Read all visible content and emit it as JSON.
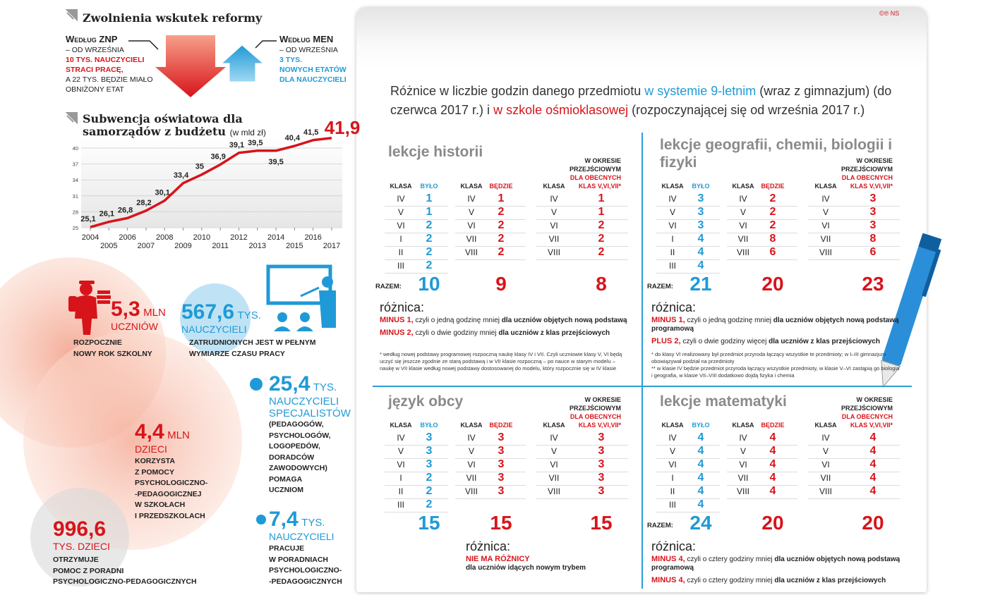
{
  "header": {
    "title": "Zwolnienia wskutek reformy"
  },
  "layoffs": {
    "znp": {
      "source": "Według ZNP",
      "lines": [
        "– OD WRZEŚNIA"
      ],
      "highlight": [
        "10 TYS. NAUCZYCIELI",
        "STRACI PRACĘ,"
      ],
      "text": [
        "A 22 TYS. BĘDZIE MIAŁO",
        "OBNIŻONY ETAT"
      ]
    },
    "men": {
      "source": "Według MEN",
      "lines": [
        "– OD WRZEŚNIA"
      ],
      "highlight": [
        "3 TYS.",
        "NOWYCH ETATÓW",
        "DLA NAUCZYCIELI"
      ]
    }
  },
  "chart_data": {
    "type": "line",
    "title": "Subwencja oświatowa dla samorządów z budżetu",
    "subtitle": "(w mld zł)",
    "x": [
      2004,
      2005,
      2006,
      2007,
      2008,
      2009,
      2010,
      2011,
      2012,
      2013,
      2014,
      2015,
      2016,
      2017
    ],
    "values": [
      25.1,
      26.1,
      26.8,
      28.2,
      30.1,
      33.4,
      35,
      36.9,
      39.1,
      39.5,
      39.5,
      40.4,
      41.5,
      41.9
    ],
    "value_labels": [
      "25,1",
      "26,1",
      "26,8",
      "28,2",
      "30,1",
      "33,4",
      "35",
      "36,9",
      "39,1",
      "39,5",
      "39,5",
      "40,4",
      "41,5",
      "41,9"
    ],
    "xlim": [
      2004,
      2017
    ],
    "ylim": [
      25,
      42
    ],
    "xticks": [
      2004,
      2005,
      2006,
      2007,
      2008,
      2009,
      2010,
      2011,
      2012,
      2013,
      2014,
      2015,
      2016,
      2017
    ],
    "yticks": [
      25,
      28,
      31,
      34,
      37,
      40
    ],
    "color": "#d7141a",
    "grid": true
  },
  "stats": [
    {
      "value": "5,3",
      "unit": "MLN",
      "noun": "UCZNIÓW",
      "text": [
        "ROZPOCZNIE",
        "NOWY ROK SZKOLNY"
      ]
    },
    {
      "value": "567,6",
      "unit": "TYS.",
      "noun": "NAUCZYCIELI",
      "text": [
        "ZATRUDNIONYCH JEST W PEŁNYM",
        "WYMIARZE CZASU PRACY"
      ]
    },
    {
      "value": "25,4",
      "unit": "TYS.",
      "noun": "NAUCZYCIELI SPECJALISTÓW",
      "text": [
        "(PEDAGOGÓW,",
        "PSYCHOLOGÓW,",
        "LOGOPEDÓW,",
        "DORADCÓW",
        "ZAWODOWYCH)",
        "POMAGA",
        "UCZNIOM"
      ]
    },
    {
      "value": "4,4",
      "unit": "MLN",
      "noun": "DZIECI",
      "text": [
        "KORZYSTA",
        "Z POMOCY",
        "PSYCHOLOGICZNO-",
        "-PEDAGOGICZNEJ",
        "W SZKOŁACH",
        "I PRZEDSZKOLACH"
      ]
    },
    {
      "value": "996,6",
      "noun": "TYS. DZIECI",
      "text": [
        "OTRZYMUJE",
        "POMOC Z PORADNI",
        "PSYCHOLOGICZNO-PEDAGOGICZNYCH"
      ]
    },
    {
      "value": "7,4",
      "unit": "TYS.",
      "noun": "NAUCZYCIELI",
      "text": [
        "PRACUJE",
        "W PORADNIACH",
        "PSYCHOLOGICZNO-",
        "-PEDAGOGICZNYCH"
      ]
    }
  ],
  "copyright": "©℗ NS",
  "headline": [
    {
      "text": "Różnice w liczbie godzin danego przedmiotu "
    },
    {
      "text": "w systemie 9-letnim",
      "color": "#1f9ad6"
    },
    {
      "text": " (wraz z gimnazjum) (do czerwca 2017 r.) i "
    },
    {
      "text": "w szkole ośmioklasowej",
      "color": "#d7141a"
    },
    {
      "text": " (rozpoczynającej się od września 2017 r.)"
    }
  ],
  "table_header": {
    "class": "KLASA",
    "before": "BYŁO",
    "after": "BĘDZIE",
    "period": [
      "W OKRESIE",
      "PRZEJŚCIOWYM"
    ],
    "period_red": [
      "DLA OBECNYCH",
      "KLAS V,VI,VII*"
    ],
    "total": "RAZEM:",
    "difference": "różnica:"
  },
  "tables": [
    {
      "title": "lekcje historii",
      "before": {
        "classes": [
          "IV",
          "V",
          "VI",
          "I",
          "II",
          "III"
        ],
        "hours": [
          1,
          1,
          2,
          2,
          2,
          2
        ]
      },
      "after": {
        "classes": [
          "IV",
          "V",
          "VI",
          "VII",
          "VIII"
        ],
        "hours": [
          1,
          2,
          2,
          2,
          2
        ]
      },
      "transition": {
        "classes": [
          "IV",
          "V",
          "VI",
          "VII",
          "VIII"
        ],
        "hours": [
          1,
          1,
          2,
          2,
          2
        ]
      },
      "totals": [
        10,
        9,
        8
      ],
      "differences": [
        {
          "lead": "MINUS 1,",
          "text": "czyli o jedną godzinę mniej",
          "bold": "dla uczniów objętych nową podstawą"
        },
        {
          "lead": "MINUS 2,",
          "text": "czyli o dwie godziny mniej",
          "bold": "dla uczniów z klas przejściowych"
        }
      ],
      "notes": [
        "* według nowej podstawy programowej rozpoczną naukę klasy IV i VII. Czyli uczniowie klasy V, VI będą uczyć się jeszcze zgodnie ze starą podstawą i w VII klasie rozpoczną – po nauce w starym modelu – naukę w VII klasie według nowej podstawy dostosowanej do modelu, który rozpocznie się w IV klasie"
      ]
    },
    {
      "title": "lekcje geografii, chemii, biologii i fizyki",
      "before": {
        "classes": [
          "IV",
          "V",
          "VI",
          "I",
          "II",
          "III"
        ],
        "hours": [
          3,
          3,
          3,
          4,
          4,
          4
        ]
      },
      "after": {
        "classes": [
          "IV",
          "V",
          "VI",
          "VII",
          "VIII"
        ],
        "hours": [
          2,
          2,
          2,
          8,
          6
        ]
      },
      "transition": {
        "classes": [
          "IV",
          "V",
          "VI",
          "VII",
          "VIII"
        ],
        "hours": [
          3,
          3,
          3,
          8,
          6
        ]
      },
      "totals": [
        21,
        20,
        23
      ],
      "differences": [
        {
          "lead": "MINUS 1,",
          "text": "czyli o jedną godzinę mniej",
          "bold": "dla uczniów objętych nową podstawą programową"
        },
        {
          "lead": "PLUS 2,",
          "text": "czyli o dwie godziny więcej",
          "bold": "dla uczniów z klas przejściowych"
        }
      ],
      "notes": [
        "* do klasy VI realizowany był przedmiot przyroda łączący wszystkie te przedmioty; w I–III gimnazjum obowiązywał podział na przedmioty",
        "** w klasie IV będzie przedmiot przyroda łączący wszystkie przedmioty, w klasie V–VI zastąpią go biologia i geografia, w klasie VII–VIII dodatkowo dojdą fizyka i chemia"
      ]
    },
    {
      "title": "język obcy",
      "before": {
        "classes": [
          "IV",
          "V",
          "VI",
          "I",
          "II",
          "III"
        ],
        "hours": [
          3,
          3,
          3,
          2,
          2,
          2
        ]
      },
      "after": {
        "classes": [
          "IV",
          "V",
          "VI",
          "VII",
          "VIII"
        ],
        "hours": [
          3,
          3,
          3,
          3,
          3
        ]
      },
      "transition": {
        "classes": [
          "IV",
          "V",
          "VI",
          "VII",
          "VIII"
        ],
        "hours": [
          3,
          3,
          3,
          3,
          3
        ]
      },
      "totals": [
        15,
        15,
        15
      ],
      "differences": [
        {
          "lead": "NIE MA RÓŻNICY",
          "bold": "dla uczniów idących nowym trybem"
        }
      ]
    },
    {
      "title": "lekcje matematyki",
      "before": {
        "classes": [
          "IV",
          "V",
          "VI",
          "I",
          "II",
          "III"
        ],
        "hours": [
          4,
          4,
          4,
          4,
          4,
          4
        ]
      },
      "after": {
        "classes": [
          "IV",
          "V",
          "VI",
          "VII",
          "VIII"
        ],
        "hours": [
          4,
          4,
          4,
          4,
          4
        ]
      },
      "transition": {
        "classes": [
          "IV",
          "V",
          "VI",
          "VII",
          "VIII"
        ],
        "hours": [
          4,
          4,
          4,
          4,
          4
        ]
      },
      "totals": [
        24,
        20,
        20
      ],
      "differences": [
        {
          "lead": "MINUS 4,",
          "text": "czyli o cztery godziny mniej",
          "bold": "dla uczniów objętych nową podstawą programową"
        },
        {
          "lead": "MINUS 4,",
          "text": "czyli o cztery godziny mniej",
          "bold": "dla uczniów z klas przejściowych"
        }
      ]
    }
  ]
}
